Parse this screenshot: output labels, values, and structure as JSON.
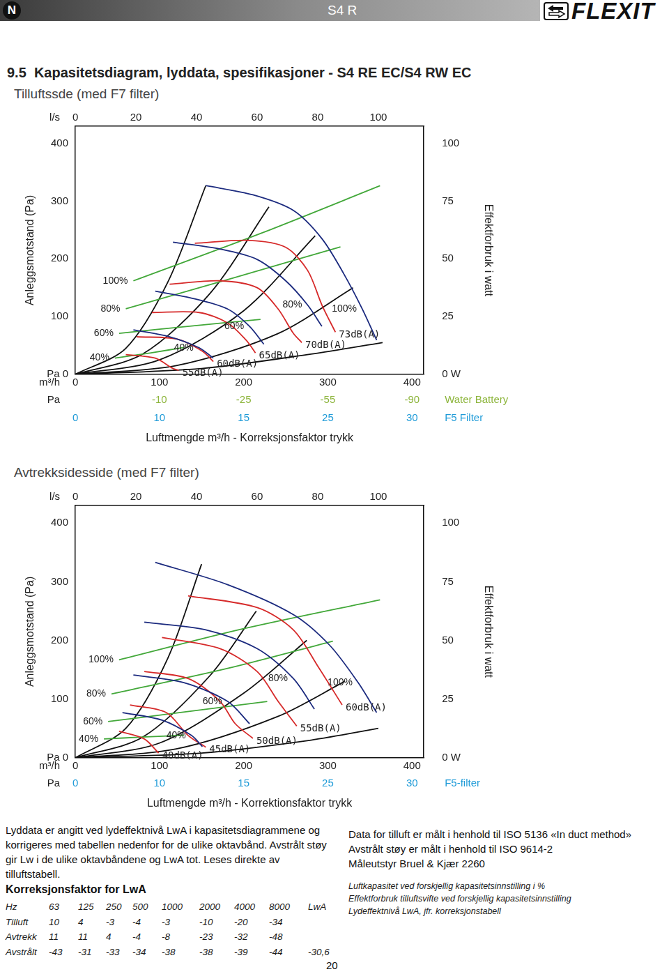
{
  "header": {
    "badge": "N",
    "product": "S4 R",
    "brand": "FLEXIT"
  },
  "title": "9.5  Kapasitetsdiagram, lyddata, spesifikasjoner - S4 RE EC/S4 RW EC",
  "chart_data": [
    {
      "type": "line",
      "title": "Tilluftssde (med F7 filter)",
      "xlabel": "Luftmengde m³/h - Korreksjonsfaktor trykk",
      "x_unit": "m³/h",
      "xlim": [
        0,
        414
      ],
      "xticks": [
        0,
        100,
        200,
        300,
        400
      ],
      "x2_unit": "l/s",
      "x2lim": [
        0,
        115
      ],
      "x2ticks": [
        0,
        20,
        40,
        60,
        80,
        100
      ],
      "ylabel": "Anleggsmotstand (Pa)",
      "ylim": [
        0,
        430
      ],
      "yticks": [
        {
          "value": 0,
          "label": "Pa 0"
        },
        100,
        200,
        300,
        400
      ],
      "y2label": "Effektforbruk i watt",
      "y2lim": [
        0,
        107.5
      ],
      "y2ticks": [
        {
          "value": 0,
          "label": "0 W"
        },
        25,
        50,
        75,
        100
      ],
      "grid": false,
      "correction_unit": "Pa",
      "corrections": [
        {
          "name": "Water Battery",
          "color": "#8db53c",
          "x": [
            100,
            200,
            300,
            400
          ],
          "values": [
            -10,
            -25,
            -55,
            -90
          ]
        },
        {
          "name": "F5 Filter",
          "color": "#1f9bd8",
          "x": [
            0,
            100,
            200,
            300,
            400
          ],
          "values": [
            0,
            10,
            15,
            25,
            30
          ]
        }
      ],
      "series": [
        {
          "name": "100%",
          "color": "#1c2b7f",
          "x": [
            155,
            211,
            259,
            293,
            319,
            341,
            358
          ],
          "values": [
            327,
            311,
            284,
            235,
            174,
            113,
            59
          ]
        },
        {
          "name": "80%",
          "color": "#1c2b7f",
          "x": [
            116,
            172,
            216,
            250,
            276,
            293
          ],
          "values": [
            229,
            217,
            199,
            162,
            120,
            83
          ]
        },
        {
          "name": "60%",
          "color": "#1c2b7f",
          "x": [
            95,
            138,
            181,
            207,
            224
          ],
          "values": [
            144,
            132,
            113,
            83,
            52
          ]
        },
        {
          "name": "40%",
          "color": "#1c2b7f",
          "x": [
            69,
            112,
            147,
            164
          ],
          "values": [
            77,
            65,
            46,
            28
          ]
        },
        {
          "name": "73dB(A)",
          "color": "#d62a2a",
          "x": [
            142,
            207,
            250,
            276,
            293,
            309
          ],
          "values": [
            227,
            232,
            220,
            180,
            120,
            73
          ]
        },
        {
          "name": "70dB(A)",
          "color": "#d62a2a",
          "x": [
            112,
            172,
            216,
            241,
            259,
            269
          ],
          "values": [
            156,
            162,
            150,
            113,
            71,
            55
          ]
        },
        {
          "name": "65dB(A)",
          "color": "#d62a2a",
          "x": [
            91,
            147,
            181,
            203,
            214
          ],
          "values": [
            107,
            107,
            89,
            59,
            37
          ]
        },
        {
          "name": "60dB(A)",
          "color": "#d62a2a",
          "x": [
            73,
            121,
            151,
            164
          ],
          "values": [
            65,
            61,
            40,
            22
          ]
        },
        {
          "name": "55dB(A)",
          "color": "#d62a2a",
          "x": [
            60,
            95,
            116,
            123
          ],
          "values": [
            34,
            28,
            10,
            7
          ]
        },
        {
          "name": "100%",
          "color": "#43a83a",
          "axis": "y2",
          "x": [
            69,
            220,
            362
          ],
          "values": [
            40.5,
            61,
            81.7
          ]
        },
        {
          "name": "80%",
          "color": "#43a83a",
          "axis": "y2",
          "x": [
            60,
            190,
            315
          ],
          "values": [
            28.4,
            42,
            55.2
          ]
        },
        {
          "name": "60%",
          "color": "#43a83a",
          "axis": "y2",
          "x": [
            52,
            140,
            220
          ],
          "values": [
            17.7,
            21,
            23.8
          ]
        },
        {
          "name": "40%",
          "color": "#43a83a",
          "axis": "y2",
          "x": [
            47,
            90,
            129
          ],
          "values": [
            7,
            9.3,
            11.6
          ]
        },
        {
          "color": "#111111",
          "x": [
            0,
            60,
            110,
            155
          ],
          "values": [
            0,
            45,
            160,
            327
          ]
        },
        {
          "color": "#111111",
          "x": [
            0,
            80,
            160,
            230
          ],
          "values": [
            0,
            35,
            140,
            290
          ]
        },
        {
          "color": "#111111",
          "x": [
            0,
            100,
            200,
            285
          ],
          "values": [
            0,
            25,
            110,
            240
          ]
        },
        {
          "color": "#111111",
          "x": [
            0,
            120,
            240,
            330
          ],
          "values": [
            0,
            15,
            70,
            150
          ]
        },
        {
          "color": "#111111",
          "x": [
            0,
            150,
            280,
            365
          ],
          "values": [
            0,
            10,
            35,
            55
          ]
        }
      ]
    },
    {
      "type": "line",
      "title": "Avtrekksidesside (med F7 filter)",
      "xlabel": "Luftmengde m³/h - Korrektionsfaktor trykk",
      "x_unit": "m³/h",
      "xlim": [
        0,
        414
      ],
      "xticks": [
        0,
        100,
        200,
        300,
        400
      ],
      "x2_unit": "l/s",
      "x2lim": [
        0,
        115
      ],
      "x2ticks": [
        0,
        20,
        40,
        60,
        80,
        100
      ],
      "ylabel": "Anleggsmotstand (Pa)",
      "ylim": [
        0,
        430
      ],
      "yticks": [
        {
          "value": 0,
          "label": "Pa 0"
        },
        100,
        200,
        300,
        400
      ],
      "y2label": "Effektforbruk i watt",
      "y2lim": [
        0,
        107.5
      ],
      "y2ticks": [
        {
          "value": 0,
          "label": "0 W"
        },
        25,
        50,
        75,
        100
      ],
      "grid": false,
      "correction_unit": "Pa",
      "corrections": [
        {
          "name": "F5-filter",
          "color": "#1f9bd8",
          "x": [
            0,
            100,
            200,
            300,
            400
          ],
          "values": [
            0,
            10,
            15,
            25,
            30
          ]
        }
      ],
      "series": [
        {
          "name": "100%",
          "color": "#1c2b7f",
          "x": [
            95,
            181,
            259,
            302,
            336,
            358
          ],
          "values": [
            333,
            295,
            244,
            192,
            128,
            77
          ]
        },
        {
          "name": "80%",
          "color": "#1c2b7f",
          "x": [
            82,
            155,
            216,
            259,
            284
          ],
          "values": [
            231,
            218,
            186,
            135,
            83
          ]
        },
        {
          "name": "60%",
          "color": "#1c2b7f",
          "x": [
            69,
            129,
            181,
            207
          ],
          "values": [
            141,
            128,
            96,
            58
          ]
        },
        {
          "name": "40%",
          "color": "#1c2b7f",
          "x": [
            56,
            103,
            138,
            151
          ],
          "values": [
            77,
            64,
            38,
            19
          ]
        },
        {
          "name": "60dB(A)",
          "color": "#d62a2a",
          "x": [
            134,
            216,
            259,
            289,
            317
          ],
          "values": [
            276,
            256,
            218,
            154,
            90
          ]
        },
        {
          "name": "55dB(A)",
          "color": "#d62a2a",
          "x": [
            103,
            172,
            216,
            241,
            263
          ],
          "values": [
            205,
            186,
            147,
            96,
            54
          ]
        },
        {
          "name": "50dB(A)",
          "color": "#d62a2a",
          "x": [
            82,
            134,
            172,
            190,
            211
          ],
          "values": [
            147,
            135,
            96,
            58,
            33
          ]
        },
        {
          "name": "45dB(A)",
          "color": "#d62a2a",
          "x": [
            65,
            108,
            134,
            155
          ],
          "values": [
            90,
            77,
            38,
            18
          ]
        },
        {
          "name": "40dB(A)",
          "color": "#d62a2a",
          "x": [
            52,
            82,
            99
          ],
          "values": [
            45,
            32,
            8
          ]
        },
        {
          "name": "100%",
          "color": "#43a83a",
          "axis": "y2",
          "x": [
            52,
            200,
            362
          ],
          "values": [
            41.7,
            55,
            67.3
          ]
        },
        {
          "name": "80%",
          "color": "#43a83a",
          "axis": "y2",
          "x": [
            43,
            180,
            306
          ],
          "values": [
            27.2,
            38,
            49.7
          ]
        },
        {
          "name": "60%",
          "color": "#43a83a",
          "axis": "y2",
          "x": [
            39,
            130,
            228
          ],
          "values": [
            15.4,
            19.5,
            24
          ]
        },
        {
          "name": "40%",
          "color": "#43a83a",
          "axis": "y2",
          "x": [
            34,
            80,
            129
          ],
          "values": [
            8,
            8.8,
            9.6
          ]
        },
        {
          "color": "#111111",
          "x": [
            0,
            60,
            110,
            150
          ],
          "values": [
            0,
            50,
            170,
            330
          ]
        },
        {
          "color": "#111111",
          "x": [
            0,
            80,
            160,
            215
          ],
          "values": [
            0,
            35,
            140,
            250
          ]
        },
        {
          "color": "#111111",
          "x": [
            0,
            100,
            200,
            275
          ],
          "values": [
            0,
            25,
            110,
            200
          ]
        },
        {
          "color": "#111111",
          "x": [
            0,
            120,
            240,
            320
          ],
          "values": [
            0,
            15,
            70,
            130
          ]
        },
        {
          "color": "#111111",
          "x": [
            0,
            150,
            280,
            360
          ],
          "values": [
            0,
            8,
            30,
            50
          ]
        }
      ]
    }
  ],
  "paragraph": "Lyddata er angitt ved lydeffektnivå LwA i kapasitetsdiagrammene og korrigeres med tabellen nedenfor for de ulike oktavbånd. Avstrålt støy gir Lw i de ulike oktavbåndene og LwA tot. Leses direkte av tilluftstabell.",
  "table": {
    "title": "Korreksjonsfaktor for LwA",
    "header": [
      "Hz",
      "63",
      "125",
      "250",
      "500",
      "1000",
      "2000",
      "4000",
      "8000",
      "LwA"
    ],
    "rows": [
      [
        "Tilluft",
        "10",
        "4",
        "-3",
        "-4",
        "-3",
        "-10",
        "-20",
        "-34"
      ],
      [
        "Avtrekk",
        "11",
        "11",
        "4",
        "-4",
        "-8",
        "-23",
        "-32",
        "-48"
      ],
      [
        "Avstrålt",
        "-43",
        "-31",
        "-33",
        "-34",
        "-38",
        "-38",
        "-39",
        "-44",
        "-30,6"
      ]
    ]
  },
  "measurement_notes": [
    "Data for tilluft er målt i henhold til ISO 5136 «In duct method»",
    "Avstrålt støy er målt i henhold til ISO 9614-2",
    "Måleutstyr Bruel & Kjær 2260"
  ],
  "legend_notes": [
    "Luftkapasitet ved forskjellig kapasitetsinnstilling i %",
    "Effektforbruk tilluftsvifte ved forskjellig kapasitetsinnstilling",
    "Lydeffektnivå LwA, jfr. korreksjonstabell"
  ],
  "page_number": "20"
}
